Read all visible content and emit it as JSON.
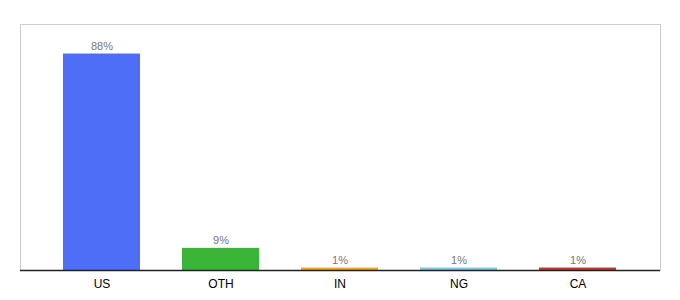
{
  "chart_data": {
    "type": "bar",
    "categories": [
      "US",
      "OTH",
      "IN",
      "NG",
      "CA"
    ],
    "values": [
      88,
      9,
      1,
      1,
      1
    ],
    "value_labels": [
      "88%",
      "9%",
      "1%",
      "1%",
      "1%"
    ],
    "colors": [
      "#4f6ef7",
      "#3ab53a",
      "#f5a623",
      "#7ec8e3",
      "#c0392b"
    ],
    "ylim": [
      0,
      100
    ],
    "data_labels": true,
    "tick_labels": "x"
  }
}
